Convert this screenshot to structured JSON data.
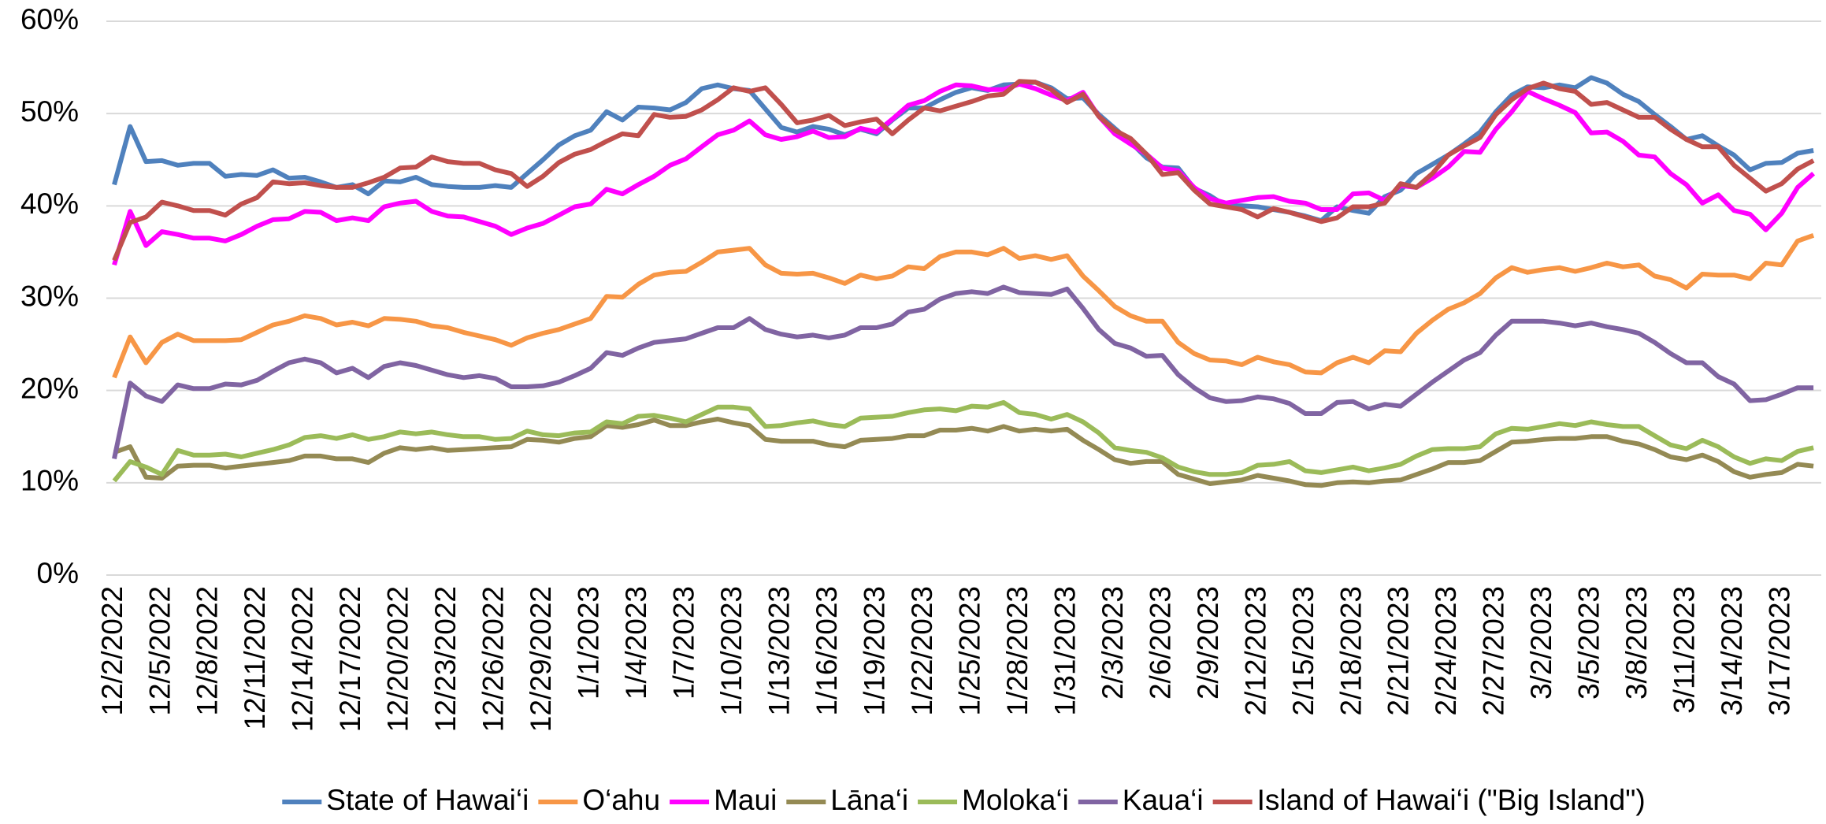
{
  "chart_data": {
    "type": "line",
    "categories": [
      "12/2/2022",
      null,
      null,
      "12/5/2022",
      null,
      null,
      "12/8/2022",
      null,
      null,
      "12/11/2022",
      null,
      null,
      "12/14/2022",
      null,
      null,
      "12/17/2022",
      null,
      null,
      "12/20/2022",
      null,
      null,
      "12/23/2022",
      null,
      null,
      "12/26/2022",
      null,
      null,
      "12/29/2022",
      null,
      null,
      "1/1/2023",
      null,
      null,
      "1/4/2023",
      null,
      null,
      "1/7/2023",
      null,
      null,
      "1/10/2023",
      null,
      null,
      "1/13/2023",
      null,
      null,
      "1/16/2023",
      null,
      null,
      "1/19/2023",
      null,
      null,
      "1/22/2023",
      null,
      null,
      "1/25/2023",
      null,
      null,
      "1/28/2023",
      null,
      null,
      "1/31/2023",
      null,
      null,
      "2/3/2023",
      null,
      null,
      "2/6/2023",
      null,
      null,
      "2/9/2023",
      null,
      null,
      "2/12/2023",
      null,
      null,
      "2/15/2023",
      null,
      null,
      "2/18/2023",
      null,
      null,
      "2/21/2023",
      null,
      null,
      "2/24/2023",
      null,
      null,
      "2/27/2023",
      null,
      null,
      "3/2/2023",
      null,
      null,
      "3/5/2023",
      null,
      null,
      "3/8/2023",
      null,
      null,
      "3/11/2023",
      null,
      null,
      "3/14/2023",
      null,
      null,
      "3/17/2023",
      null,
      null
    ],
    "ylim": [
      0,
      60
    ],
    "yticks": [
      {
        "value": 0,
        "label": "0%"
      },
      {
        "value": 10,
        "label": "10%"
      },
      {
        "value": 20,
        "label": "20%"
      },
      {
        "value": 30,
        "label": "30%"
      },
      {
        "value": 40,
        "label": "40%"
      },
      {
        "value": 50,
        "label": "50%"
      },
      {
        "value": 60,
        "label": "60%"
      }
    ],
    "grid": true,
    "legend": "bottom",
    "series": [
      {
        "name": "State of Hawai‘i",
        "color": "#4f81bd",
        "values": [
          42.3,
          48.6,
          44.8,
          44.9,
          44.4,
          44.6,
          44.6,
          43.2,
          43.4,
          43.3,
          43.9,
          43,
          43.1,
          42.6,
          42,
          42.3,
          41.3,
          42.7,
          42.6,
          43.1,
          42.3,
          42.1,
          42,
          42,
          42.2,
          42,
          43.5,
          45,
          46.6,
          47.6,
          48.2,
          50.2,
          49.3,
          50.7,
          50.6,
          50.4,
          51.2,
          52.7,
          53.1,
          52.7,
          52.5,
          50.5,
          48.5,
          48,
          48.6,
          48.3,
          47.7,
          48.3,
          47.8,
          49.3,
          50.6,
          50.6,
          51.5,
          52.3,
          52.8,
          52.5,
          53.1,
          53.2,
          53.4,
          52.8,
          51.6,
          51.7,
          49.9,
          48.4,
          46.9,
          45.2,
          44.2,
          44.1,
          41.9,
          41.1,
          40,
          40,
          39.9,
          39.6,
          39.3,
          38.9,
          38.4,
          39.9,
          39.5,
          39.2,
          41,
          41.7,
          43.5,
          44.5,
          45.5,
          46.7,
          48,
          50.2,
          52,
          52.9,
          52.8,
          53.1,
          52.8,
          53.9,
          53.3,
          52.1,
          51.3,
          49.9,
          48.6,
          47.2,
          47.6,
          46.5,
          45.5,
          43.9,
          44.6,
          44.7,
          45.7,
          46
        ]
      },
      {
        "name": "O‘ahu",
        "color": "#f79646",
        "values": [
          21.4,
          25.8,
          23,
          25.2,
          26.1,
          25.4,
          25.4,
          25.4,
          25.5,
          26.3,
          27.1,
          27.5,
          28.1,
          27.8,
          27.1,
          27.4,
          27,
          27.8,
          27.7,
          27.5,
          27,
          26.8,
          26.3,
          25.9,
          25.5,
          24.9,
          25.7,
          26.2,
          26.6,
          27.2,
          27.8,
          30.2,
          30.1,
          31.5,
          32.5,
          32.8,
          32.9,
          33.9,
          35,
          35.2,
          35.4,
          33.6,
          32.7,
          32.6,
          32.7,
          32.2,
          31.6,
          32.5,
          32.1,
          32.4,
          33.4,
          33.2,
          34.5,
          35,
          35,
          34.7,
          35.4,
          34.3,
          34.6,
          34.2,
          34.6,
          32.4,
          30.8,
          29.1,
          28.1,
          27.5,
          27.5,
          25.2,
          24,
          23.3,
          23.2,
          22.8,
          23.6,
          23.1,
          22.8,
          22,
          21.9,
          23,
          23.6,
          23,
          24.3,
          24.2,
          26.2,
          27.6,
          28.8,
          29.5,
          30.5,
          32.2,
          33.3,
          32.8,
          33.1,
          33.3,
          32.9,
          33.3,
          33.8,
          33.4,
          33.6,
          32.4,
          32,
          31.1,
          32.6,
          32.5,
          32.5,
          32.1,
          33.8,
          33.6,
          36.2,
          36.8
        ]
      },
      {
        "name": "Maui",
        "color": "#ff00ff",
        "values": [
          33.6,
          39.4,
          35.7,
          37.2,
          36.9,
          36.5,
          36.5,
          36.2,
          36.9,
          37.8,
          38.5,
          38.6,
          39.4,
          39.3,
          38.4,
          38.7,
          38.4,
          39.9,
          40.3,
          40.5,
          39.4,
          38.9,
          38.8,
          38.3,
          37.8,
          36.9,
          37.6,
          38.1,
          39,
          39.9,
          40.2,
          41.8,
          41.3,
          42.3,
          43.2,
          44.4,
          45.1,
          46.4,
          47.7,
          48.2,
          49.2,
          47.7,
          47.2,
          47.5,
          48.1,
          47.4,
          47.5,
          48.4,
          48,
          49.4,
          50.9,
          51.4,
          52.4,
          53.1,
          53,
          52.6,
          52.6,
          53.2,
          52.7,
          52,
          51.4,
          52.3,
          49.7,
          47.8,
          46.7,
          45.6,
          44.1,
          43.8,
          42,
          40.8,
          40.3,
          40.6,
          40.9,
          41,
          40.5,
          40.3,
          39.6,
          39.6,
          41.3,
          41.4,
          40.6,
          42.2,
          42,
          43,
          44.2,
          45.9,
          45.8,
          48.3,
          50.2,
          52.4,
          51.6,
          50.9,
          50.1,
          47.9,
          48,
          47,
          45.5,
          45.3,
          43.5,
          42.3,
          40.3,
          41.2,
          39.5,
          39.1,
          37.4,
          39.2,
          42,
          43.5
        ]
      },
      {
        "name": "Lāna‘i",
        "color": "#948a54",
        "values": [
          13.3,
          13.9,
          10.6,
          10.5,
          11.8,
          11.9,
          11.9,
          11.6,
          11.8,
          12,
          12.2,
          12.4,
          12.9,
          12.9,
          12.6,
          12.6,
          12.2,
          13.2,
          13.8,
          13.6,
          13.8,
          13.5,
          13.6,
          13.7,
          13.8,
          13.9,
          14.7,
          14.6,
          14.4,
          14.8,
          15,
          16.2,
          16,
          16.3,
          16.8,
          16.2,
          16.2,
          16.6,
          16.9,
          16.5,
          16.2,
          14.7,
          14.5,
          14.5,
          14.5,
          14.1,
          13.9,
          14.6,
          14.7,
          14.8,
          15.1,
          15.1,
          15.7,
          15.7,
          15.9,
          15.6,
          16.1,
          15.6,
          15.8,
          15.6,
          15.8,
          14.6,
          13.6,
          12.5,
          12.1,
          12.3,
          12.3,
          10.9,
          10.4,
          9.9,
          10.1,
          10.3,
          10.8,
          10.5,
          10.2,
          9.8,
          9.7,
          10,
          10.1,
          10,
          10.2,
          10.3,
          10.9,
          11.5,
          12.2,
          12.2,
          12.4,
          13.4,
          14.4,
          14.5,
          14.7,
          14.8,
          14.8,
          15,
          15,
          14.5,
          14.2,
          13.6,
          12.8,
          12.5,
          13,
          12.3,
          11.2,
          10.6,
          10.9,
          11.1,
          12,
          11.8
        ]
      },
      {
        "name": "Moloka‘i",
        "color": "#9bbb59",
        "values": [
          10.2,
          12.3,
          11.7,
          10.9,
          13.5,
          13,
          13,
          13.1,
          12.8,
          13.2,
          13.6,
          14.1,
          14.9,
          15.1,
          14.8,
          15.2,
          14.7,
          15,
          15.5,
          15.3,
          15.5,
          15.2,
          15,
          15,
          14.7,
          14.8,
          15.6,
          15.2,
          15.1,
          15.4,
          15.5,
          16.6,
          16.4,
          17.2,
          17.3,
          17,
          16.6,
          17.4,
          18.2,
          18.2,
          18,
          16.1,
          16.2,
          16.5,
          16.7,
          16.3,
          16.1,
          17,
          17.1,
          17.2,
          17.6,
          17.9,
          18,
          17.8,
          18.3,
          18.2,
          18.7,
          17.6,
          17.4,
          16.9,
          17.4,
          16.6,
          15.4,
          13.8,
          13.5,
          13.3,
          12.7,
          11.7,
          11.2,
          10.9,
          10.9,
          11.1,
          11.9,
          12,
          12.3,
          11.3,
          11.1,
          11.4,
          11.7,
          11.3,
          11.6,
          12,
          12.9,
          13.6,
          13.7,
          13.7,
          13.9,
          15.3,
          15.9,
          15.8,
          16.1,
          16.4,
          16.2,
          16.6,
          16.3,
          16.1,
          16.1,
          15.1,
          14.1,
          13.7,
          14.6,
          13.9,
          12.8,
          12.1,
          12.6,
          12.4,
          13.4,
          13.8
        ]
      },
      {
        "name": "Kaua‘i",
        "color": "#8064a2",
        "values": [
          12.6,
          20.8,
          19.4,
          18.8,
          20.6,
          20.2,
          20.2,
          20.7,
          20.6,
          21.1,
          22.1,
          23,
          23.4,
          23,
          21.9,
          22.4,
          21.4,
          22.6,
          23,
          22.7,
          22.2,
          21.7,
          21.4,
          21.6,
          21.3,
          20.4,
          20.4,
          20.5,
          20.9,
          21.6,
          22.4,
          24.1,
          23.8,
          24.6,
          25.2,
          25.4,
          25.6,
          26.2,
          26.8,
          26.8,
          27.8,
          26.6,
          26.1,
          25.8,
          26,
          25.7,
          26,
          26.8,
          26.8,
          27.2,
          28.5,
          28.8,
          29.9,
          30.5,
          30.7,
          30.5,
          31.2,
          30.6,
          30.5,
          30.4,
          31,
          28.9,
          26.6,
          25.1,
          24.6,
          23.7,
          23.8,
          21.7,
          20.3,
          19.2,
          18.8,
          18.9,
          19.3,
          19.1,
          18.6,
          17.5,
          17.5,
          18.7,
          18.8,
          18,
          18.5,
          18.3,
          19.6,
          20.9,
          22.1,
          23.3,
          24.1,
          26,
          27.5,
          27.5,
          27.5,
          27.3,
          27,
          27.3,
          26.9,
          26.6,
          26.2,
          25.2,
          24,
          23,
          23,
          21.5,
          20.7,
          18.9,
          19,
          19.6,
          20.3,
          20.3
        ]
      },
      {
        "name": "Island of Hawai‘i (\"Big Island\")",
        "color": "#c0504d",
        "values": [
          34.1,
          38.2,
          38.8,
          40.4,
          40,
          39.5,
          39.5,
          39,
          40.2,
          40.9,
          42.6,
          42.4,
          42.5,
          42.2,
          42,
          42,
          42.5,
          43.1,
          44.1,
          44.2,
          45.3,
          44.8,
          44.6,
          44.6,
          43.9,
          43.5,
          42.1,
          43.2,
          44.7,
          45.6,
          46.1,
          47,
          47.8,
          47.6,
          49.9,
          49.6,
          49.7,
          50.4,
          51.5,
          52.8,
          52.4,
          52.8,
          51,
          49,
          49.3,
          49.8,
          48.7,
          49.1,
          49.4,
          47.8,
          49.3,
          50.6,
          50.3,
          50.8,
          51.3,
          51.9,
          52.1,
          53.5,
          53.4,
          52.6,
          51.2,
          52.1,
          49.7,
          48.2,
          47.3,
          45.6,
          43.4,
          43.6,
          41.7,
          40.2,
          39.9,
          39.6,
          38.8,
          39.7,
          39.3,
          38.8,
          38.3,
          38.7,
          39.9,
          39.9,
          40.3,
          42.4,
          42,
          43.5,
          45.5,
          46.5,
          47.4,
          49.9,
          51.5,
          52.7,
          53.3,
          52.7,
          52.4,
          51,
          51.2,
          50.4,
          49.6,
          49.6,
          48.3,
          47.2,
          46.4,
          46.4,
          44.4,
          43,
          41.6,
          42.4,
          44,
          44.9
        ]
      }
    ]
  }
}
